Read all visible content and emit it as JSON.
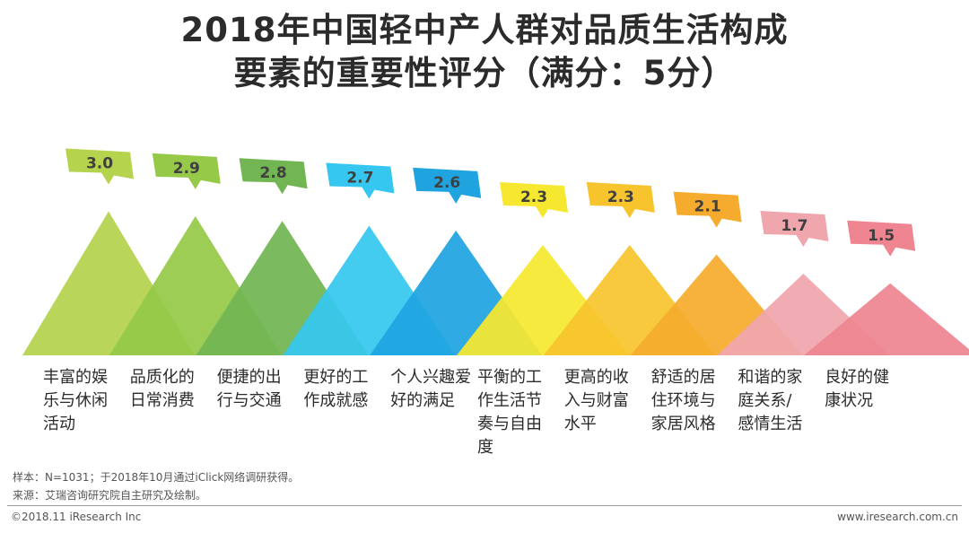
{
  "title_line1": "2018年中国轻中产人群对品质生活构成",
  "title_line2": "要素的重要性评分（满分：5分）",
  "chart_data": {
    "type": "bar",
    "title": "2018年中国轻中产人群对品质生活构成要素的重要性评分（满分：5分）",
    "categories": [
      "丰富的娱\n乐与休闲\n活动",
      "品质化的\n日常消费",
      "便捷的出\n行与交通",
      "更好的工\n作成就感",
      "个人兴趣爱\n好的满足",
      "平衡的工\n作生活节\n奏与自由\n度",
      "更高的收\n入与财富\n水平",
      "舒适的居\n住环境与\n家居风格",
      "和谐的家\n庭关系/\n感情生活",
      "良好的健\n康状况"
    ],
    "values": [
      3.0,
      2.9,
      2.8,
      2.7,
      2.6,
      2.3,
      2.3,
      2.1,
      1.7,
      1.5
    ],
    "value_labels": [
      "3.0",
      "2.9",
      "2.8",
      "2.7",
      "2.6",
      "2.3",
      "2.3",
      "2.1",
      "1.7",
      "1.5"
    ],
    "colors": [
      "#b5d34d",
      "#96c948",
      "#72b553",
      "#35c7ef",
      "#1fa4e0",
      "#f6e830",
      "#f7c42e",
      "#f5ac2e",
      "#f0a6ad",
      "#ee8590"
    ],
    "tag_text_color": "#404040"
  },
  "notes": {
    "sample": "样本：N=1031；于2018年10月通过iClick网络调研获得。",
    "source": "来源：艾瑞咨询研究院自主研究及绘制。"
  },
  "footer": {
    "copyright": "©2018.11 iResearch Inc",
    "website": "www.iresearch.com.cn"
  }
}
